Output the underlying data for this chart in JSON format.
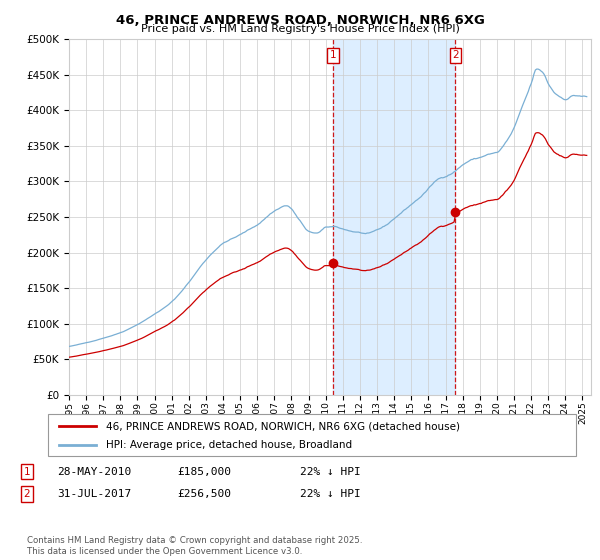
{
  "title": "46, PRINCE ANDREWS ROAD, NORWICH, NR6 6XG",
  "subtitle": "Price paid vs. HM Land Registry's House Price Index (HPI)",
  "ylim": [
    0,
    500000
  ],
  "xlim_start": 1995.0,
  "xlim_end": 2025.5,
  "sale1_year": 2010.41,
  "sale1_price": 185000,
  "sale1_label": "1",
  "sale2_year": 2017.58,
  "sale2_price": 256500,
  "sale2_label": "2",
  "legend_line1": "46, PRINCE ANDREWS ROAD, NORWICH, NR6 6XG (detached house)",
  "legend_line2": "HPI: Average price, detached house, Broadland",
  "annot1_date": "28-MAY-2010",
  "annot1_price": "£185,000",
  "annot1_hpi": "22% ↓ HPI",
  "annot2_date": "31-JUL-2017",
  "annot2_price": "£256,500",
  "annot2_hpi": "22% ↓ HPI",
  "footer": "Contains HM Land Registry data © Crown copyright and database right 2025.\nThis data is licensed under the Open Government Licence v3.0.",
  "line_red": "#cc0000",
  "line_blue": "#7aafd4",
  "shade_color": "#ddeeff",
  "grid_color": "#cccccc",
  "background": "#ffffff"
}
